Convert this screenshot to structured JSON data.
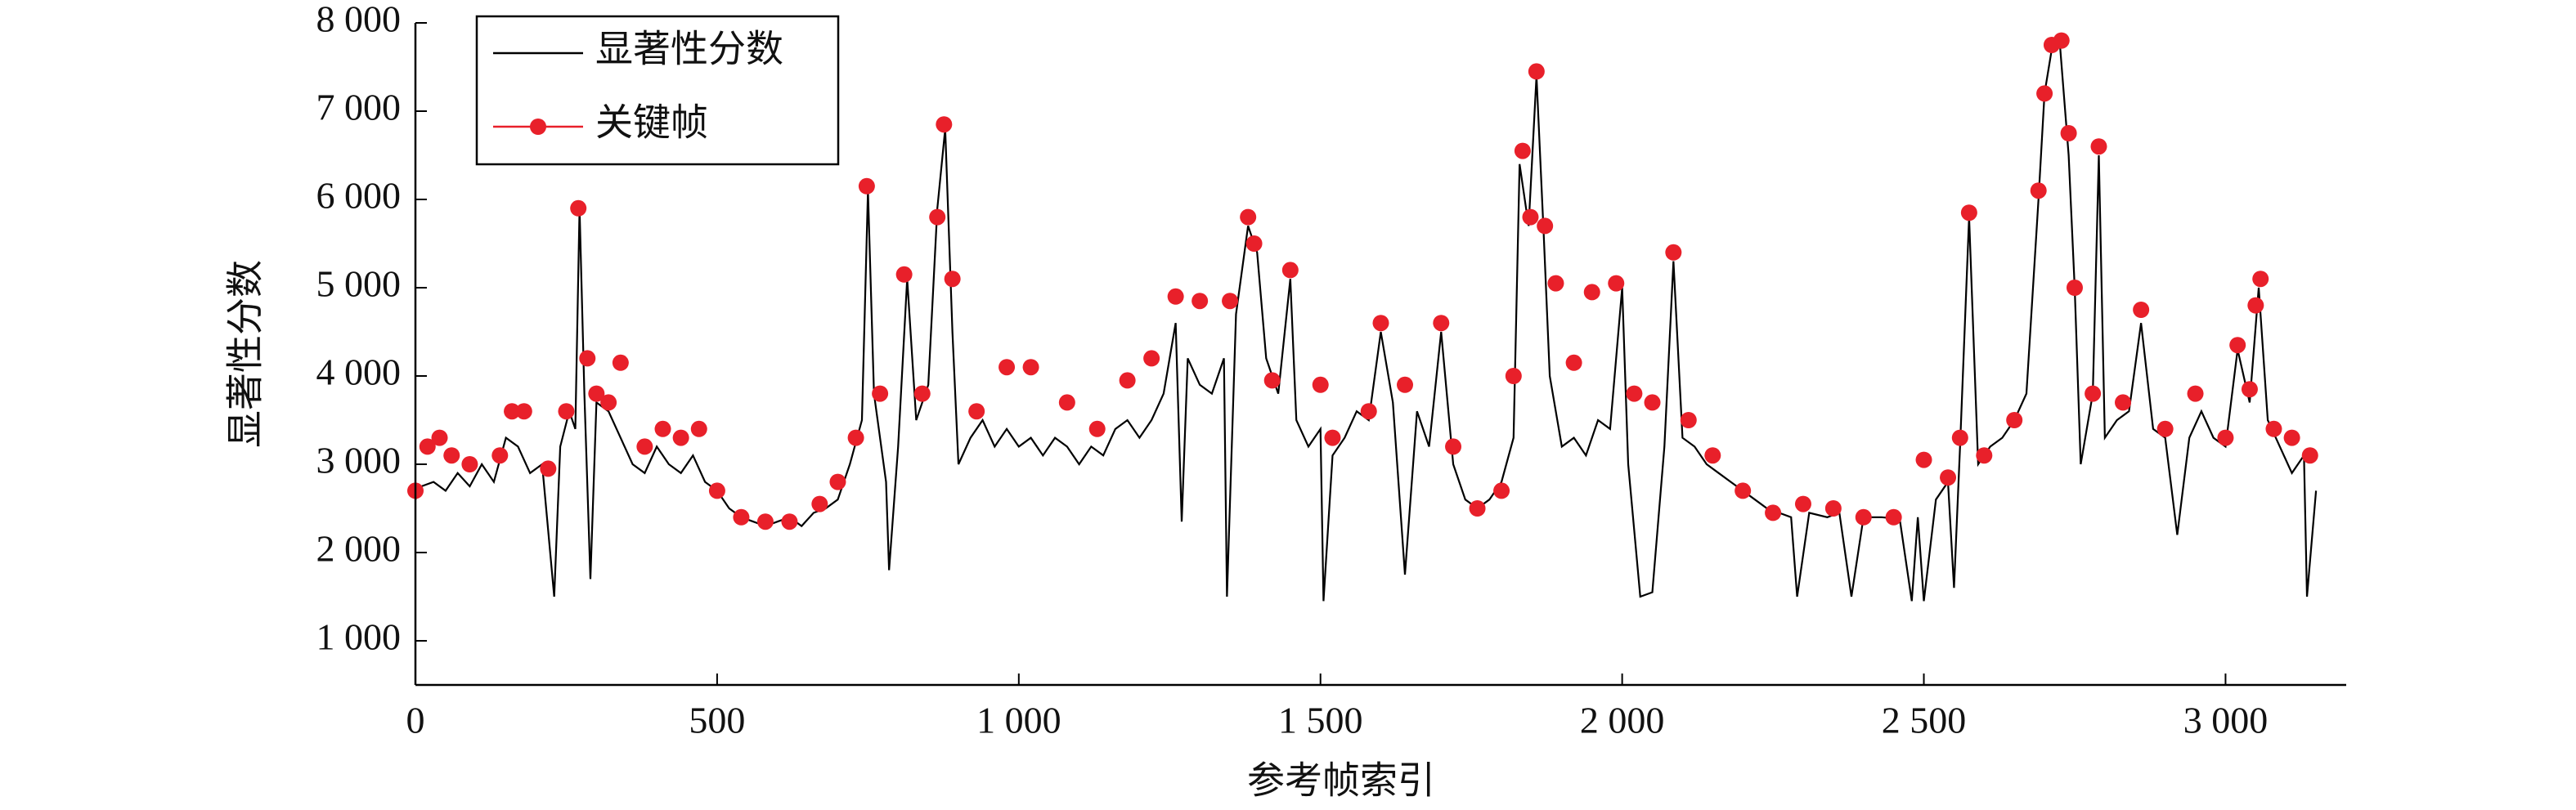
{
  "chart_data": {
    "type": "line",
    "xlabel": "参考帧索引",
    "ylabel": "显著性分数",
    "xlim": [
      0,
      3200
    ],
    "ylim": [
      500,
      8000
    ],
    "xticks": [
      0,
      500,
      {
        "value": 1000,
        "label": "1 000"
      },
      {
        "value": 1500,
        "label": "1 500"
      },
      {
        "value": 2000,
        "label": "2 000"
      },
      {
        "value": 2500,
        "label": "2 500"
      },
      {
        "value": 3000,
        "label": "3 000"
      }
    ],
    "yticks": [
      {
        "value": 1000,
        "label": "1 000"
      },
      {
        "value": 2000,
        "label": "2 000"
      },
      {
        "value": 3000,
        "label": "3 000"
      },
      {
        "value": 4000,
        "label": "4 000"
      },
      {
        "value": 5000,
        "label": "5 000"
      },
      {
        "value": 6000,
        "label": "6 000"
      },
      {
        "value": 7000,
        "label": "7 000"
      },
      {
        "value": 8000,
        "label": "8 000"
      }
    ],
    "grid": false,
    "legend": "upper left",
    "series": [
      {
        "name": "显著性分数",
        "color": "#000000",
        "marker": "none",
        "x": [
          0,
          10,
          30,
          50,
          70,
          90,
          110,
          130,
          150,
          170,
          190,
          210,
          230,
          240,
          255,
          265,
          272,
          280,
          290,
          300,
          320,
          340,
          360,
          380,
          400,
          420,
          440,
          460,
          480,
          500,
          520,
          540,
          560,
          580,
          600,
          620,
          640,
          660,
          680,
          700,
          720,
          740,
          750,
          760,
          780,
          785,
          800,
          815,
          830,
          850,
          865,
          878,
          890,
          900,
          920,
          940,
          960,
          980,
          1000,
          1020,
          1040,
          1060,
          1080,
          1100,
          1120,
          1140,
          1160,
          1180,
          1200,
          1220,
          1240,
          1260,
          1270,
          1280,
          1300,
          1320,
          1340,
          1345,
          1360,
          1380,
          1395,
          1410,
          1430,
          1450,
          1460,
          1480,
          1500,
          1505,
          1520,
          1540,
          1560,
          1580,
          1600,
          1620,
          1640,
          1660,
          1680,
          1700,
          1720,
          1740,
          1760,
          1780,
          1800,
          1820,
          1830,
          1845,
          1858,
          1870,
          1880,
          1900,
          1920,
          1940,
          1960,
          1980,
          2000,
          2010,
          2030,
          2050,
          2070,
          2085,
          2100,
          2120,
          2140,
          2160,
          2180,
          2200,
          2220,
          2240,
          2260,
          2280,
          2290,
          2310,
          2340,
          2360,
          2380,
          2400,
          2430,
          2460,
          2480,
          2490,
          2500,
          2520,
          2540,
          2550,
          2560,
          2575,
          2590,
          2610,
          2630,
          2650,
          2670,
          2690,
          2700,
          2712,
          2725,
          2740,
          2750,
          2760,
          2780,
          2790,
          2800,
          2820,
          2840,
          2860,
          2880,
          2900,
          2920,
          2940,
          2960,
          2980,
          3000,
          3020,
          3040,
          3055,
          3070,
          3090,
          3110,
          3130,
          3135,
          3150
        ],
        "values": [
          2600,
          2750,
          2800,
          2700,
          2900,
          2750,
          3000,
          2800,
          3300,
          3200,
          2900,
          3000,
          1500,
          3200,
          3600,
          3400,
          5900,
          3800,
          1700,
          3700,
          3600,
          3300,
          3000,
          2900,
          3200,
          3000,
          2900,
          3100,
          2800,
          2700,
          2500,
          2400,
          2350,
          2300,
          2350,
          2400,
          2300,
          2450,
          2500,
          2600,
          3000,
          3500,
          6100,
          3800,
          2800,
          1800,
          3200,
          5100,
          3500,
          3900,
          5900,
          6800,
          4500,
          3000,
          3300,
          3500,
          3200,
          3400,
          3200,
          3300,
          3100,
          3300,
          3200,
          3000,
          3200,
          3100,
          3400,
          3500,
          3300,
          3500,
          3800,
          4600,
          2350,
          4200,
          3900,
          3800,
          4200,
          1500,
          4700,
          5700,
          5400,
          4200,
          3800,
          5100,
          3500,
          3200,
          3400,
          1450,
          3100,
          3300,
          3600,
          3500,
          4500,
          3700,
          1750,
          3600,
          3200,
          4500,
          3000,
          2600,
          2500,
          2600,
          2800,
          3300,
          6400,
          5700,
          7400,
          5600,
          4000,
          3200,
          3300,
          3100,
          3500,
          3400,
          5000,
          3000,
          1500,
          1550,
          3200,
          5300,
          3300,
          3200,
          3000,
          2900,
          2800,
          2700,
          2600,
          2500,
          2450,
          2400,
          1500,
          2450,
          2400,
          2450,
          1500,
          2400,
          2400,
          2380,
          1450,
          2400,
          1450,
          2600,
          2800,
          1600,
          3200,
          5800,
          3000,
          3200,
          3300,
          3500,
          3800,
          6000,
          7200,
          7700,
          7800,
          6500,
          5000,
          3000,
          3800,
          6500,
          3300,
          3500,
          3600,
          4600,
          3400,
          3300,
          2200,
          3300,
          3600,
          3300,
          3200,
          4300,
          3700,
          5000,
          3500,
          3200,
          2900,
          3100,
          1500,
          2700
        ]
      },
      {
        "name": "关键帧",
        "color": "#e8202a",
        "marker": "circle",
        "x": [
          0,
          20,
          40,
          60,
          90,
          140,
          160,
          180,
          220,
          250,
          270,
          285,
          300,
          320,
          340,
          380,
          410,
          440,
          470,
          500,
          540,
          580,
          620,
          670,
          700,
          730,
          748,
          770,
          810,
          840,
          865,
          876,
          890,
          930,
          980,
          1020,
          1080,
          1130,
          1180,
          1220,
          1260,
          1300,
          1350,
          1380,
          1390,
          1420,
          1450,
          1500,
          1520,
          1580,
          1600,
          1640,
          1700,
          1720,
          1760,
          1800,
          1820,
          1835,
          1848,
          1858,
          1872,
          1890,
          1920,
          1950,
          1990,
          2020,
          2050,
          2085,
          2110,
          2150,
          2200,
          2250,
          2300,
          2350,
          2400,
          2450,
          2500,
          2540,
          2560,
          2575,
          2600,
          2650,
          2690,
          2700,
          2712,
          2728,
          2740,
          2750,
          2780,
          2790,
          2830,
          2860,
          2900,
          2950,
          3000,
          3020,
          3040,
          3050,
          3058,
          3080,
          3110,
          3140
        ],
        "values": [
          2700,
          3200,
          3300,
          3100,
          3000,
          3100,
          3600,
          3600,
          2950,
          3600,
          5900,
          4200,
          3800,
          3700,
          4150,
          3200,
          3400,
          3300,
          3400,
          2700,
          2400,
          2350,
          2350,
          2550,
          2800,
          3300,
          6150,
          3800,
          5150,
          3800,
          5800,
          6850,
          5100,
          3600,
          4100,
          4100,
          3700,
          3400,
          3950,
          4200,
          4900,
          4850,
          4850,
          5800,
          5500,
          3950,
          5200,
          3900,
          3300,
          3600,
          4600,
          3900,
          4600,
          3200,
          2500,
          2700,
          4000,
          6550,
          5800,
          7450,
          5700,
          5050,
          4150,
          4950,
          5050,
          3800,
          3700,
          5400,
          3500,
          3100,
          2700,
          2450,
          2550,
          2500,
          2400,
          2400,
          3050,
          2850,
          3300,
          5850,
          3100,
          3500,
          6100,
          7200,
          7750,
          7800,
          6750,
          5000,
          3800,
          6600,
          3700,
          4750,
          3400,
          3800,
          3300,
          4350,
          3850,
          4800,
          5100,
          3400,
          3300,
          3100
        ]
      }
    ]
  }
}
